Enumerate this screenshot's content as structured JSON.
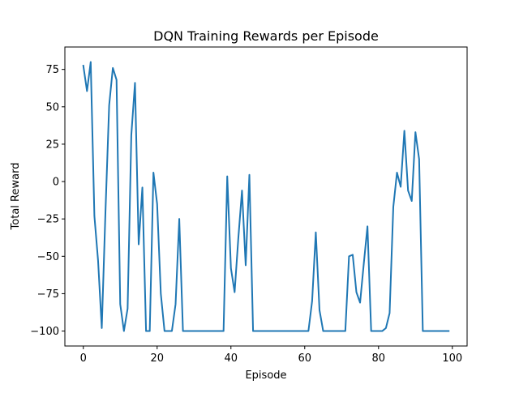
{
  "chart_data": {
    "type": "line",
    "title": "DQN Training Rewards per Episode",
    "xlabel": "Episode",
    "ylabel": "Total Reward",
    "xlim": [
      -5,
      104
    ],
    "ylim": [
      -110,
      90
    ],
    "xticks": [
      0,
      20,
      40,
      60,
      80,
      100
    ],
    "yticks": [
      -100,
      -75,
      -50,
      -25,
      0,
      25,
      50,
      75
    ],
    "grid": false,
    "series": [
      {
        "color": "#1f77b4",
        "x": [
          0,
          1,
          2,
          3,
          4,
          5,
          6,
          7,
          8,
          9,
          10,
          11,
          12,
          13,
          14,
          15,
          16,
          17,
          18,
          19,
          20,
          21,
          22,
          23,
          24,
          25,
          26,
          27,
          28,
          29,
          30,
          31,
          32,
          33,
          34,
          35,
          36,
          37,
          38,
          39,
          40,
          41,
          42,
          43,
          44,
          45,
          46,
          47,
          48,
          49,
          50,
          51,
          52,
          53,
          54,
          55,
          56,
          57,
          58,
          59,
          60,
          61,
          62,
          63,
          64,
          65,
          66,
          67,
          68,
          69,
          70,
          71,
          72,
          73,
          74,
          75,
          76,
          77,
          78,
          79,
          80,
          81,
          82,
          83,
          84,
          85,
          86,
          87,
          88,
          89,
          90,
          91,
          92,
          93,
          94,
          95,
          96,
          97,
          98,
          99
        ],
        "values": [
          77.5,
          60.5,
          80,
          -23,
          -53,
          -98,
          -20,
          51,
          76,
          68,
          -82,
          -100,
          -85,
          31,
          66,
          -42,
          -4,
          -100,
          -100,
          6,
          -15,
          -75,
          -100,
          -100,
          -100,
          -82,
          -25,
          -100,
          -100,
          -100,
          -100,
          -100,
          -100,
          -100,
          -100,
          -100,
          -100,
          -100,
          -100,
          3.5,
          -58,
          -74,
          -38,
          -6,
          -56,
          4.5,
          -100,
          -100,
          -100,
          -100,
          -100,
          -100,
          -100,
          -100,
          -100,
          -100,
          -100,
          -100,
          -100,
          -100,
          -100,
          -100,
          -80,
          -34,
          -86,
          -100,
          -100,
          -100,
          -100,
          -100,
          -100,
          -100,
          -50,
          -49,
          -74,
          -81,
          -55,
          -30,
          -100,
          -100,
          -100,
          -100,
          -98,
          -88,
          -17,
          6,
          -3.5,
          34,
          -6,
          -13,
          33,
          15,
          -100,
          -100,
          -100,
          -100,
          -100,
          -100,
          -100,
          -100
        ]
      }
    ]
  }
}
